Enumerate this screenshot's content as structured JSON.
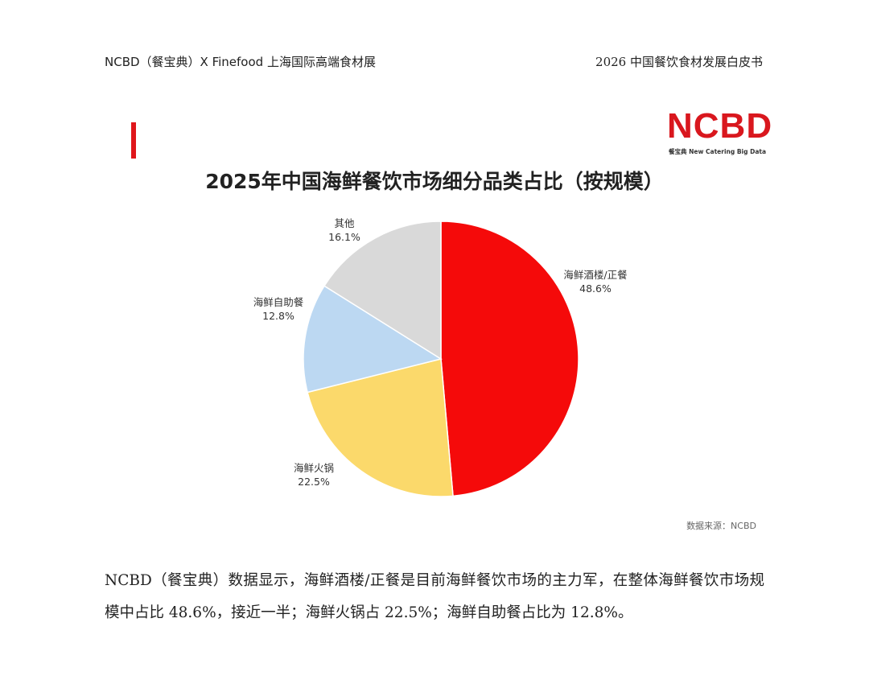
{
  "header": {
    "left": "NCBD（餐宝典）X Finefood 上海国际高端食材展",
    "right": "2026 中国餐饮食材发展白皮书"
  },
  "logo": {
    "word": "NCBD",
    "sub": "餐宝典 New Catering Big Data"
  },
  "colors": {
    "accent": "#e0161b",
    "slice_1": "#f50a0a",
    "slice_2": "#fbd96b",
    "slice_3": "#bcd8f2",
    "slice_4": "#d9d9d9"
  },
  "chart_data": {
    "type": "pie",
    "title": "2025年中国海鲜餐饮市场细分品类占比（按规模）",
    "slices": [
      {
        "label": "海鲜酒楼/正餐",
        "value": 48.6,
        "value_label": "48.6%"
      },
      {
        "label": "海鲜火锅",
        "value": 22.5,
        "value_label": "22.5%"
      },
      {
        "label": "海鲜自助餐",
        "value": 12.8,
        "value_label": "12.8%"
      },
      {
        "label": "其他",
        "value": 16.1,
        "value_label": "16.1%"
      }
    ],
    "source": "数据来源：NCBD"
  },
  "body": {
    "paragraph": "NCBD（餐宝典）数据显示，海鲜酒楼/正餐是目前海鲜餐饮市场的主力军，在整体海鲜餐饮市场规模中占比 48.6%，接近一半；海鲜火锅占 22.5%；海鲜自助餐占比为 12.8%。"
  }
}
